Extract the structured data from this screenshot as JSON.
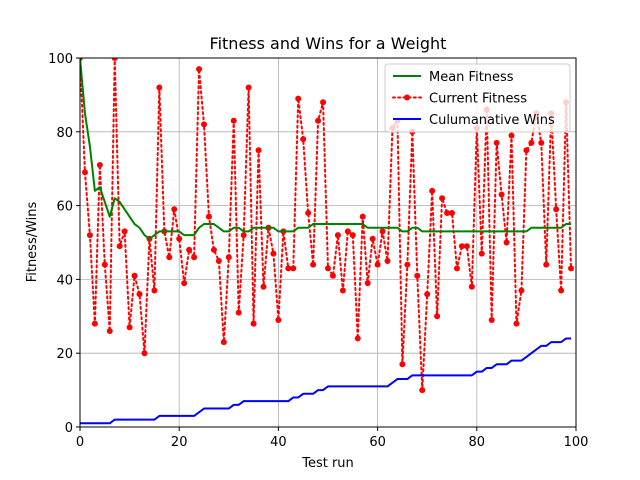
{
  "chart_data": {
    "type": "line",
    "title": "Fitness and Wins for a Weight",
    "xlabel": "Test run",
    "ylabel": "Fitness/Wins",
    "xlim": [
      0,
      100
    ],
    "ylim": [
      0,
      100
    ],
    "xticks": [
      0,
      20,
      40,
      60,
      80,
      100
    ],
    "yticks": [
      0,
      20,
      40,
      60,
      80,
      100
    ],
    "grid": true,
    "legend_position": "top-right",
    "series": [
      {
        "name": "Mean Fitness",
        "color": "#008000",
        "style": "solid",
        "marker": "none",
        "x": [
          0,
          1,
          2,
          3,
          4,
          5,
          6,
          7,
          8,
          9,
          10,
          11,
          12,
          13,
          14,
          15,
          16,
          17,
          18,
          19,
          20,
          21,
          22,
          23,
          24,
          25,
          26,
          27,
          28,
          29,
          30,
          31,
          32,
          33,
          34,
          35,
          36,
          37,
          38,
          39,
          40,
          41,
          42,
          43,
          44,
          45,
          46,
          47,
          48,
          49,
          50,
          51,
          52,
          53,
          54,
          55,
          56,
          57,
          58,
          59,
          60,
          61,
          62,
          63,
          64,
          65,
          66,
          67,
          68,
          69,
          70,
          71,
          72,
          73,
          74,
          75,
          76,
          77,
          78,
          79,
          80,
          81,
          82,
          83,
          84,
          85,
          86,
          87,
          88,
          89,
          90,
          91,
          92,
          93,
          94,
          95,
          96,
          97,
          98,
          99
        ],
        "y": [
          100,
          85,
          76,
          64,
          65,
          61,
          57,
          62,
          61,
          59,
          57,
          55,
          54,
          52,
          51,
          52,
          53,
          53,
          53,
          53,
          53,
          52,
          52,
          52,
          54,
          55,
          55,
          55,
          54,
          53,
          53,
          54,
          54,
          53,
          53,
          54,
          54,
          54,
          54,
          54,
          53,
          53,
          53,
          53,
          54,
          54,
          54,
          55,
          55,
          55,
          55,
          55,
          55,
          55,
          55,
          55,
          55,
          55,
          54,
          54,
          54,
          54,
          54,
          54,
          54,
          53,
          53,
          54,
          54,
          53,
          53,
          53,
          53,
          53,
          53,
          53,
          53,
          53,
          53,
          53,
          53,
          53,
          53,
          53,
          53,
          53,
          53,
          53,
          53,
          53,
          53,
          54,
          54,
          54,
          54,
          54,
          54,
          54,
          55,
          55
        ]
      },
      {
        "name": "Current Fitness",
        "color": "#ff0000",
        "style": "dotted",
        "marker": "circle",
        "x": [
          0,
          1,
          2,
          3,
          4,
          5,
          6,
          7,
          8,
          9,
          10,
          11,
          12,
          13,
          14,
          15,
          16,
          17,
          18,
          19,
          20,
          21,
          22,
          23,
          24,
          25,
          26,
          27,
          28,
          29,
          30,
          31,
          32,
          33,
          34,
          35,
          36,
          37,
          38,
          39,
          40,
          41,
          42,
          43,
          44,
          45,
          46,
          47,
          48,
          49,
          50,
          51,
          52,
          53,
          54,
          55,
          56,
          57,
          58,
          59,
          60,
          61,
          62,
          63,
          64,
          65,
          66,
          67,
          68,
          69,
          70,
          71,
          72,
          73,
          74,
          75,
          76,
          77,
          78,
          79,
          80,
          81,
          82,
          83,
          84,
          85,
          86,
          87,
          88,
          89,
          90,
          91,
          92,
          93,
          94,
          95,
          96,
          97,
          98,
          99
        ],
        "y": [
          100,
          69,
          52,
          28,
          71,
          44,
          26,
          100,
          49,
          53,
          27,
          41,
          36,
          20,
          51,
          37,
          92,
          53,
          46,
          59,
          51,
          39,
          48,
          46,
          97,
          82,
          57,
          48,
          45,
          23,
          46,
          83,
          31,
          52,
          92,
          28,
          75,
          38,
          54,
          47,
          29,
          53,
          43,
          43,
          89,
          78,
          58,
          44,
          83,
          88,
          43,
          41,
          52,
          37,
          53,
          52,
          24,
          57,
          39,
          51,
          44,
          53,
          45,
          81,
          83,
          17,
          44,
          80,
          41,
          10,
          36,
          64,
          30,
          62,
          58,
          58,
          43,
          49,
          49,
          38,
          81,
          47,
          86,
          29,
          77,
          63,
          50,
          79,
          28,
          37,
          75,
          77,
          85,
          77,
          44,
          85,
          59,
          37,
          88,
          43
        ]
      },
      {
        "name": "Culumanative Wins",
        "color": "#0000ff",
        "style": "solid",
        "marker": "none",
        "x": [
          0,
          1,
          2,
          3,
          4,
          5,
          6,
          7,
          8,
          9,
          10,
          11,
          12,
          13,
          14,
          15,
          16,
          17,
          18,
          19,
          20,
          21,
          22,
          23,
          24,
          25,
          26,
          27,
          28,
          29,
          30,
          31,
          32,
          33,
          34,
          35,
          36,
          37,
          38,
          39,
          40,
          41,
          42,
          43,
          44,
          45,
          46,
          47,
          48,
          49,
          50,
          51,
          52,
          53,
          54,
          55,
          56,
          57,
          58,
          59,
          60,
          61,
          62,
          63,
          64,
          65,
          66,
          67,
          68,
          69,
          70,
          71,
          72,
          73,
          74,
          75,
          76,
          77,
          78,
          79,
          80,
          81,
          82,
          83,
          84,
          85,
          86,
          87,
          88,
          89,
          90,
          91,
          92,
          93,
          94,
          95,
          96,
          97,
          98,
          99
        ],
        "y": [
          1,
          1,
          1,
          1,
          1,
          1,
          1,
          2,
          2,
          2,
          2,
          2,
          2,
          2,
          2,
          2,
          3,
          3,
          3,
          3,
          3,
          3,
          3,
          3,
          4,
          5,
          5,
          5,
          5,
          5,
          5,
          6,
          6,
          7,
          7,
          7,
          7,
          7,
          7,
          7,
          7,
          7,
          7,
          8,
          8,
          9,
          9,
          9,
          10,
          10,
          11,
          11,
          11,
          11,
          11,
          11,
          11,
          11,
          11,
          11,
          11,
          11,
          11,
          12,
          13,
          13,
          13,
          14,
          14,
          14,
          14,
          14,
          14,
          14,
          14,
          14,
          14,
          14,
          14,
          14,
          15,
          15,
          16,
          16,
          17,
          17,
          17,
          18,
          18,
          18,
          19,
          20,
          21,
          22,
          22,
          23,
          23,
          23,
          24,
          24
        ]
      }
    ]
  }
}
